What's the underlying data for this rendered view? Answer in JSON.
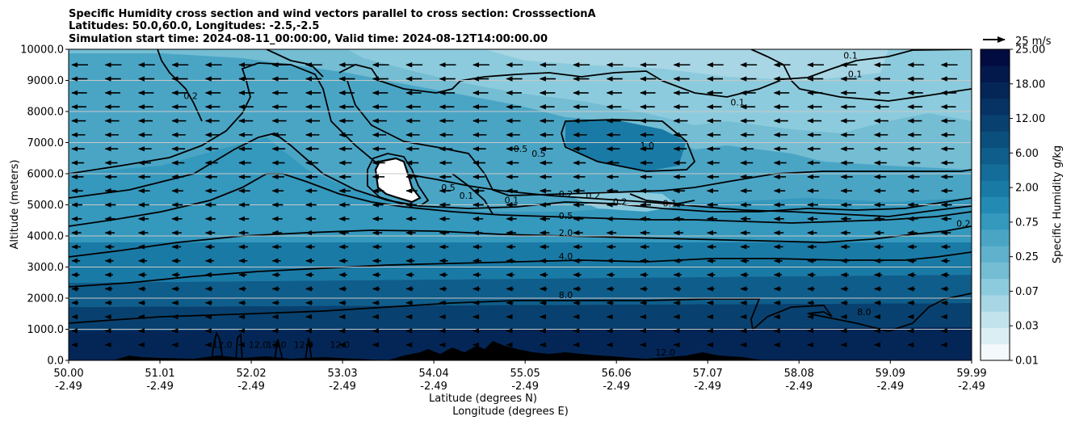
{
  "chart_data": {
    "type": "heatmap",
    "title_lines": [
      "Specific Humidity cross section and wind vectors parallel to cross section: CrosssectionA",
      "Latitudes: 50.0,60.0, Longitudes: -2.5,-2.5",
      "Simulation start time: 2024-08-11_00:00:00, Valid time: 2024-08-12T14:00:00.00"
    ],
    "xlabel": "Latitude (degrees N)",
    "xlabel2": "Longitude (degrees E)",
    "ylabel": "Altitude (meters)",
    "xlim": [
      50.0,
      59.99
    ],
    "ylim": [
      0,
      10000
    ],
    "x_ticks": [
      {
        "lat": "50.00",
        "lon": "-2.49",
        "value": 50.0
      },
      {
        "lat": "51.01",
        "lon": "-2.49",
        "value": 51.01
      },
      {
        "lat": "52.02",
        "lon": "-2.49",
        "value": 52.02
      },
      {
        "lat": "53.03",
        "lon": "-2.49",
        "value": 53.03
      },
      {
        "lat": "54.04",
        "lon": "-2.49",
        "value": 54.04
      },
      {
        "lat": "55.05",
        "lon": "-2.49",
        "value": 55.05
      },
      {
        "lat": "56.06",
        "lon": "-2.49",
        "value": 56.06
      },
      {
        "lat": "57.07",
        "lon": "-2.49",
        "value": 57.07
      },
      {
        "lat": "58.08",
        "lon": "-2.49",
        "value": 58.08
      },
      {
        "lat": "59.09",
        "lon": "-2.49",
        "value": 59.09
      },
      {
        "lat": "59.99",
        "lon": "-2.49",
        "value": 59.99
      }
    ],
    "y_ticks": [
      "0.0",
      "1000.0",
      "2000.0",
      "3000.0",
      "4000.0",
      "5000.0",
      "6000.0",
      "7000.0",
      "8000.0",
      "9000.0",
      "10000.0"
    ],
    "colorbar": {
      "label": "Specific Humidity g/kg",
      "ticks": [
        "0.01",
        "0.03",
        "0.07",
        "0.25",
        "0.75",
        "2.00",
        "6.00",
        "12.00",
        "18.00",
        "25.00"
      ]
    },
    "quiver_key": "25 m/s",
    "contour_labels": [
      {
        "text": "0.1",
        "lat": 58.65,
        "alt": 9700
      },
      {
        "text": "0.1",
        "lat": 58.7,
        "alt": 9100
      },
      {
        "text": "0.1",
        "lat": 57.4,
        "alt": 8200
      },
      {
        "text": "0.2",
        "lat": 51.35,
        "alt": 8400
      },
      {
        "text": "1.0",
        "lat": 56.4,
        "alt": 6800
      },
      {
        "text": "0.5",
        "lat": 55.0,
        "alt": 6700
      },
      {
        "text": "0.5",
        "lat": 55.2,
        "alt": 6550
      },
      {
        "text": "0.5",
        "lat": 54.2,
        "alt": 5450
      },
      {
        "text": "0.1",
        "lat": 54.4,
        "alt": 5200
      },
      {
        "text": "0.1",
        "lat": 54.9,
        "alt": 5050
      },
      {
        "text": "0.2",
        "lat": 55.5,
        "alt": 5250
      },
      {
        "text": "0.2",
        "lat": 55.8,
        "alt": 5200
      },
      {
        "text": "0.2",
        "lat": 56.1,
        "alt": 5000
      },
      {
        "text": "0.1",
        "lat": 56.65,
        "alt": 4950
      },
      {
        "text": "0.5",
        "lat": 55.5,
        "alt": 4550
      },
      {
        "text": "2.0",
        "lat": 55.5,
        "alt": 4000
      },
      {
        "text": "4.0",
        "lat": 55.5,
        "alt": 3250
      },
      {
        "text": "8.0",
        "lat": 55.5,
        "alt": 2000
      },
      {
        "text": "8.0",
        "lat": 58.8,
        "alt": 1450
      },
      {
        "text": "0.2",
        "lat": 59.9,
        "alt": 4300
      },
      {
        "text": "12.0",
        "lat": 51.7,
        "alt": 400
      },
      {
        "text": "12.0",
        "lat": 52.1,
        "alt": 400
      },
      {
        "text": "12.0",
        "lat": 52.3,
        "alt": 400
      },
      {
        "text": "12.0",
        "lat": 52.6,
        "alt": 400
      },
      {
        "text": "12.0",
        "lat": 53.0,
        "alt": 400
      },
      {
        "text": "12.0",
        "lat": 56.6,
        "alt": 150
      }
    ]
  },
  "colors": {
    "levels": [
      "#f4fafc",
      "#dbeef3",
      "#c3e3ec",
      "#a8d6e4",
      "#8ccbdd",
      "#74bdd3",
      "#5fb1cc",
      "#4aa5c5",
      "#3598bd",
      "#238bb3",
      "#1a7aa6",
      "#146c98",
      "#0f5d8a",
      "#0b4f7d",
      "#08416f",
      "#063363",
      "#042657",
      "#03194c",
      "#020c40"
    ],
    "contour": "#000000",
    "grid": "#c8c8c8"
  }
}
